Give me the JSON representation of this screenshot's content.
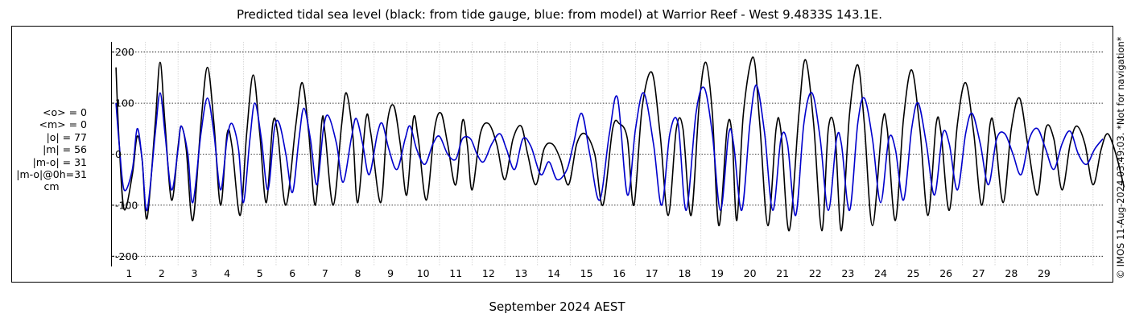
{
  "chart_data": {
    "type": "line",
    "title": "Predicted tidal sea level (black: from tide gauge, blue: from model) at Warrior Reef - West 9.4833S 143.1E.",
    "xlabel": "September 2024 AEST",
    "ylabel": "",
    "x_unit": "day of month (September 2024)",
    "xlim": [
      0,
      30.3
    ],
    "ylim": [
      -220,
      220
    ],
    "x_ticks": [
      "1",
      "2",
      "3",
      "4",
      "5",
      "6",
      "7",
      "8",
      "9",
      "10",
      "11",
      "12",
      "13",
      "14",
      "15",
      "16",
      "17",
      "18",
      "19",
      "20",
      "21",
      "22",
      "23",
      "24",
      "25",
      "26",
      "27",
      "28",
      "29"
    ],
    "y_ticks": [
      "-200",
      "-100",
      "0",
      "100",
      "200"
    ],
    "grid": true,
    "series": [
      {
        "color": "#000000",
        "points": [
          [
            0.1,
            170
          ],
          [
            0.2,
            20
          ],
          [
            0.35,
            -108
          ],
          [
            0.6,
            -40
          ],
          [
            0.75,
            35
          ],
          [
            0.9,
            -10
          ],
          [
            1.05,
            -126
          ],
          [
            1.3,
            60
          ],
          [
            1.45,
            180
          ],
          [
            1.6,
            60
          ],
          [
            1.8,
            -90
          ],
          [
            2.0,
            15
          ],
          [
            2.1,
            55
          ],
          [
            2.25,
            10
          ],
          [
            2.45,
            -130
          ],
          [
            2.7,
            60
          ],
          [
            2.9,
            170
          ],
          [
            3.1,
            60
          ],
          [
            3.3,
            -100
          ],
          [
            3.5,
            40
          ],
          [
            3.65,
            15
          ],
          [
            3.9,
            -120
          ],
          [
            4.1,
            40
          ],
          [
            4.3,
            155
          ],
          [
            4.5,
            40
          ],
          [
            4.7,
            -95
          ],
          [
            4.9,
            60
          ],
          [
            5.05,
            40
          ],
          [
            5.3,
            -100
          ],
          [
            5.6,
            55
          ],
          [
            5.8,
            140
          ],
          [
            6.0,
            40
          ],
          [
            6.2,
            -100
          ],
          [
            6.4,
            65
          ],
          [
            6.5,
            40
          ],
          [
            6.75,
            -100
          ],
          [
            7.0,
            55
          ],
          [
            7.15,
            120
          ],
          [
            7.35,
            35
          ],
          [
            7.5,
            -95
          ],
          [
            7.75,
            70
          ],
          [
            7.9,
            40
          ],
          [
            8.2,
            -95
          ],
          [
            8.4,
            60
          ],
          [
            8.6,
            95
          ],
          [
            8.8,
            20
          ],
          [
            9.0,
            -80
          ],
          [
            9.2,
            70
          ],
          [
            9.35,
            30
          ],
          [
            9.6,
            -90
          ],
          [
            9.85,
            50
          ],
          [
            10.05,
            80
          ],
          [
            10.25,
            20
          ],
          [
            10.5,
            -60
          ],
          [
            10.7,
            65
          ],
          [
            10.85,
            20
          ],
          [
            11.0,
            -70
          ],
          [
            11.25,
            40
          ],
          [
            11.5,
            60
          ],
          [
            11.75,
            20
          ],
          [
            12.0,
            -50
          ],
          [
            12.25,
            30
          ],
          [
            12.5,
            55
          ],
          [
            12.7,
            0
          ],
          [
            12.95,
            -60
          ],
          [
            13.2,
            10
          ],
          [
            13.45,
            20
          ],
          [
            13.7,
            -10
          ],
          [
            13.95,
            -60
          ],
          [
            14.2,
            20
          ],
          [
            14.45,
            40
          ],
          [
            14.75,
            0
          ],
          [
            15.0,
            -100
          ],
          [
            15.3,
            50
          ],
          [
            15.5,
            60
          ],
          [
            15.75,
            30
          ],
          [
            15.95,
            -100
          ],
          [
            16.2,
            90
          ],
          [
            16.5,
            160
          ],
          [
            16.75,
            40
          ],
          [
            17.0,
            -120
          ],
          [
            17.25,
            50
          ],
          [
            17.45,
            50
          ],
          [
            17.7,
            -120
          ],
          [
            17.95,
            100
          ],
          [
            18.15,
            180
          ],
          [
            18.35,
            80
          ],
          [
            18.55,
            -140
          ],
          [
            18.8,
            50
          ],
          [
            18.95,
            40
          ],
          [
            19.1,
            -130
          ],
          [
            19.3,
            80
          ],
          [
            19.6,
            190
          ],
          [
            19.8,
            60
          ],
          [
            20.05,
            -140
          ],
          [
            20.3,
            50
          ],
          [
            20.45,
            45
          ],
          [
            20.7,
            -150
          ],
          [
            21.0,
            80
          ],
          [
            21.2,
            185
          ],
          [
            21.45,
            60
          ],
          [
            21.7,
            -150
          ],
          [
            21.9,
            50
          ],
          [
            22.1,
            45
          ],
          [
            22.3,
            -150
          ],
          [
            22.55,
            80
          ],
          [
            22.8,
            175
          ],
          [
            23.0,
            60
          ],
          [
            23.25,
            -140
          ],
          [
            23.55,
            60
          ],
          [
            23.7,
            50
          ],
          [
            23.95,
            -130
          ],
          [
            24.2,
            70
          ],
          [
            24.45,
            165
          ],
          [
            24.7,
            50
          ],
          [
            24.95,
            -120
          ],
          [
            25.2,
            60
          ],
          [
            25.35,
            40
          ],
          [
            25.6,
            -110
          ],
          [
            25.85,
            60
          ],
          [
            26.1,
            140
          ],
          [
            26.35,
            40
          ],
          [
            26.6,
            -100
          ],
          [
            26.85,
            60
          ],
          [
            27.0,
            40
          ],
          [
            27.25,
            -95
          ],
          [
            27.5,
            50
          ],
          [
            27.75,
            110
          ],
          [
            28.0,
            20
          ],
          [
            28.3,
            -80
          ],
          [
            28.55,
            50
          ],
          [
            28.8,
            30
          ],
          [
            29.05,
            -70
          ],
          [
            29.3,
            20
          ],
          [
            29.5,
            55
          ],
          [
            29.75,
            20
          ],
          [
            30.0,
            -60
          ],
          [
            30.25,
            10
          ],
          [
            30.45,
            40
          ],
          [
            30.7,
            0
          ],
          [
            30.95,
            -65
          ]
        ]
      },
      {
        "color": "#0000cc",
        "points": [
          [
            0.1,
            100
          ],
          [
            0.2,
            20
          ],
          [
            0.35,
            -70
          ],
          [
            0.6,
            -30
          ],
          [
            0.75,
            50
          ],
          [
            0.9,
            -10
          ],
          [
            1.05,
            -110
          ],
          [
            1.3,
            40
          ],
          [
            1.45,
            120
          ],
          [
            1.6,
            40
          ],
          [
            1.8,
            -70
          ],
          [
            2.0,
            10
          ],
          [
            2.1,
            55
          ],
          [
            2.3,
            0
          ],
          [
            2.45,
            -95
          ],
          [
            2.7,
            40
          ],
          [
            2.9,
            110
          ],
          [
            3.1,
            40
          ],
          [
            3.3,
            -70
          ],
          [
            3.5,
            30
          ],
          [
            3.65,
            60
          ],
          [
            3.85,
            10
          ],
          [
            4.0,
            -95
          ],
          [
            4.2,
            30
          ],
          [
            4.35,
            100
          ],
          [
            4.55,
            30
          ],
          [
            4.75,
            -70
          ],
          [
            4.95,
            50
          ],
          [
            5.1,
            60
          ],
          [
            5.3,
            0
          ],
          [
            5.5,
            -75
          ],
          [
            5.7,
            30
          ],
          [
            5.85,
            90
          ],
          [
            6.05,
            30
          ],
          [
            6.25,
            -60
          ],
          [
            6.45,
            50
          ],
          [
            6.6,
            75
          ],
          [
            6.85,
            20
          ],
          [
            7.05,
            -55
          ],
          [
            7.3,
            30
          ],
          [
            7.45,
            70
          ],
          [
            7.65,
            20
          ],
          [
            7.85,
            -40
          ],
          [
            8.1,
            40
          ],
          [
            8.25,
            60
          ],
          [
            8.45,
            10
          ],
          [
            8.7,
            -30
          ],
          [
            8.95,
            30
          ],
          [
            9.1,
            55
          ],
          [
            9.3,
            10
          ],
          [
            9.55,
            -20
          ],
          [
            9.8,
            20
          ],
          [
            10.0,
            35
          ],
          [
            10.25,
            0
          ],
          [
            10.5,
            -10
          ],
          [
            10.7,
            30
          ],
          [
            10.95,
            30
          ],
          [
            11.15,
            0
          ],
          [
            11.35,
            -15
          ],
          [
            11.6,
            20
          ],
          [
            11.85,
            40
          ],
          [
            12.05,
            10
          ],
          [
            12.3,
            -30
          ],
          [
            12.55,
            30
          ],
          [
            12.8,
            15
          ],
          [
            13.1,
            -40
          ],
          [
            13.35,
            -15
          ],
          [
            13.6,
            -50
          ],
          [
            13.9,
            -30
          ],
          [
            14.1,
            20
          ],
          [
            14.35,
            80
          ],
          [
            14.6,
            0
          ],
          [
            14.9,
            -90
          ],
          [
            15.2,
            40
          ],
          [
            15.45,
            110
          ],
          [
            15.75,
            -80
          ],
          [
            16.0,
            50
          ],
          [
            16.25,
            120
          ],
          [
            16.55,
            20
          ],
          [
            16.8,
            -100
          ],
          [
            17.05,
            40
          ],
          [
            17.3,
            60
          ],
          [
            17.55,
            -110
          ],
          [
            17.85,
            80
          ],
          [
            18.1,
            130
          ],
          [
            18.35,
            40
          ],
          [
            18.6,
            -110
          ],
          [
            18.85,
            40
          ],
          [
            19.0,
            20
          ],
          [
            19.25,
            -110
          ],
          [
            19.5,
            60
          ],
          [
            19.7,
            135
          ],
          [
            19.95,
            40
          ],
          [
            20.2,
            -110
          ],
          [
            20.45,
            30
          ],
          [
            20.65,
            20
          ],
          [
            20.9,
            -120
          ],
          [
            21.15,
            60
          ],
          [
            21.4,
            120
          ],
          [
            21.65,
            30
          ],
          [
            21.9,
            -110
          ],
          [
            22.15,
            30
          ],
          [
            22.3,
            20
          ],
          [
            22.55,
            -110
          ],
          [
            22.8,
            60
          ],
          [
            23.0,
            110
          ],
          [
            23.25,
            30
          ],
          [
            23.5,
            -95
          ],
          [
            23.75,
            30
          ],
          [
            23.95,
            10
          ],
          [
            24.2,
            -90
          ],
          [
            24.45,
            50
          ],
          [
            24.65,
            100
          ],
          [
            24.9,
            20
          ],
          [
            25.15,
            -80
          ],
          [
            25.4,
            40
          ],
          [
            25.6,
            20
          ],
          [
            25.85,
            -70
          ],
          [
            26.1,
            40
          ],
          [
            26.3,
            80
          ],
          [
            26.55,
            20
          ],
          [
            26.8,
            -60
          ],
          [
            27.05,
            30
          ],
          [
            27.3,
            40
          ],
          [
            27.55,
            0
          ],
          [
            27.8,
            -40
          ],
          [
            28.05,
            30
          ],
          [
            28.3,
            50
          ],
          [
            28.55,
            10
          ],
          [
            28.8,
            -30
          ],
          [
            29.05,
            20
          ],
          [
            29.3,
            45
          ],
          [
            29.55,
            0
          ],
          [
            29.8,
            -20
          ],
          [
            30.05,
            10
          ],
          [
            30.3,
            30
          ]
        ]
      }
    ]
  },
  "stats": {
    "mean_obs": "<o> = 0",
    "mean_model": "<m> = 0",
    "abs_obs": "|o| = 77",
    "abs_model": "|m| = 56",
    "abs_diff": "|m-o| = 31",
    "abs_diff_0h": "|m-o|@0h=31",
    "unit": "cm"
  },
  "copyright": "© IMOS 11-Aug-2024 03:49:03. *Not for navigation*"
}
